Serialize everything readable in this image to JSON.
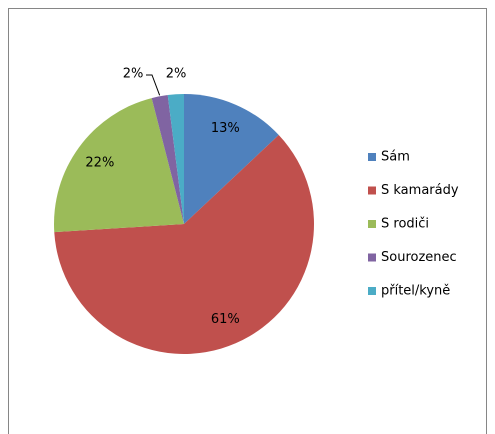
{
  "chart_data": {
    "type": "pie",
    "categories": [
      "Sám",
      "S kamarády",
      "S rodiči",
      "Sourozenec",
      "přítel/kyně"
    ],
    "values": [
      13,
      61,
      22,
      2,
      2
    ],
    "value_labels": [
      "13%",
      "61%",
      "22%",
      "2%",
      "2%"
    ],
    "colors": [
      "#4F81BD",
      "#C0504D",
      "#9BBB59",
      "#8064A2",
      "#4BACC6"
    ],
    "legend": "right"
  }
}
